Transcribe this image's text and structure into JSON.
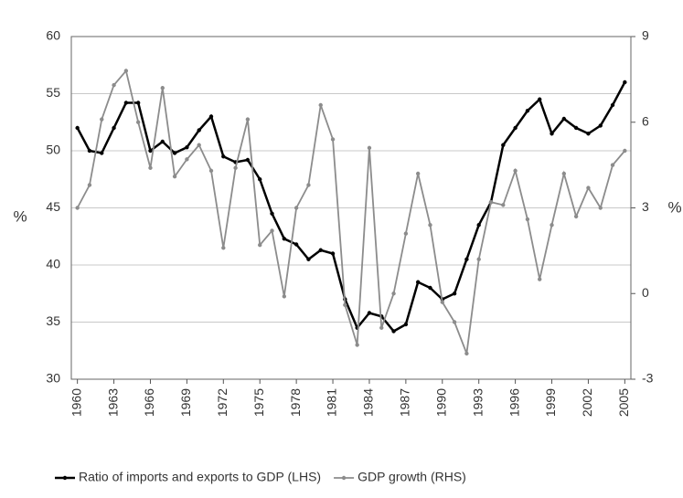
{
  "chart_data": {
    "type": "line",
    "x": [
      1960,
      1961,
      1962,
      1963,
      1964,
      1965,
      1966,
      1967,
      1968,
      1969,
      1970,
      1971,
      1972,
      1973,
      1974,
      1975,
      1976,
      1977,
      1978,
      1979,
      1980,
      1981,
      1982,
      1983,
      1984,
      1985,
      1986,
      1987,
      1988,
      1989,
      1990,
      1991,
      1992,
      1993,
      1994,
      1995,
      1996,
      1997,
      1998,
      1999,
      2000,
      2001,
      2002,
      2003,
      2004,
      2005
    ],
    "series": [
      {
        "name": "Ratio of imports and exports to GDP (LHS)",
        "color": "#000000",
        "values": [
          52,
          50,
          49.8,
          52,
          54.2,
          54.2,
          50,
          50.8,
          49.8,
          50.3,
          51.8,
          53,
          49.5,
          49,
          49.2,
          47.5,
          44.5,
          42.3,
          41.8,
          40.5,
          41.3,
          41,
          37,
          34.5,
          35.8,
          35.5,
          34.2,
          34.8,
          38.5,
          38,
          37,
          37.5,
          40.5,
          43.5,
          45.5,
          50.5,
          52,
          53.5,
          54.5,
          51.5,
          52.8,
          52,
          51.5,
          52.2,
          54,
          56
        ]
      },
      {
        "name": "GDP growth (RHS)",
        "color": "#8c8c8c",
        "axis": "y2",
        "values": [
          3,
          3.8,
          6.1,
          7.3,
          7.8,
          6,
          4.4,
          7.2,
          4.1,
          4.7,
          5.2,
          4.3,
          1.6,
          4.4,
          6.1,
          1.7,
          2.2,
          -0.1,
          3,
          3.8,
          6.6,
          5.4,
          -0.4,
          -1.8,
          5.1,
          -1.2,
          0,
          2.1,
          4.2,
          2.4,
          -0.3,
          -1,
          -2.1,
          1.2,
          3.2,
          3.1,
          4.3,
          2.6,
          0.5,
          2.4,
          4.2,
          2.7,
          3.7,
          3,
          4.5,
          5
        ]
      }
    ],
    "xlim": [
      1959.5,
      2005.5
    ],
    "xticks": [
      1960,
      1963,
      1966,
      1969,
      1972,
      1975,
      1978,
      1981,
      1984,
      1987,
      1990,
      1993,
      1996,
      1999,
      2002,
      2005
    ],
    "ylim": [
      30,
      60
    ],
    "yticks": [
      30,
      35,
      40,
      45,
      50,
      55,
      60
    ],
    "y2lim": [
      -3,
      9
    ],
    "y2ticks": [
      -3,
      0,
      3,
      6,
      9
    ],
    "ylabel": "%",
    "y2label": "%",
    "grid": true
  }
}
